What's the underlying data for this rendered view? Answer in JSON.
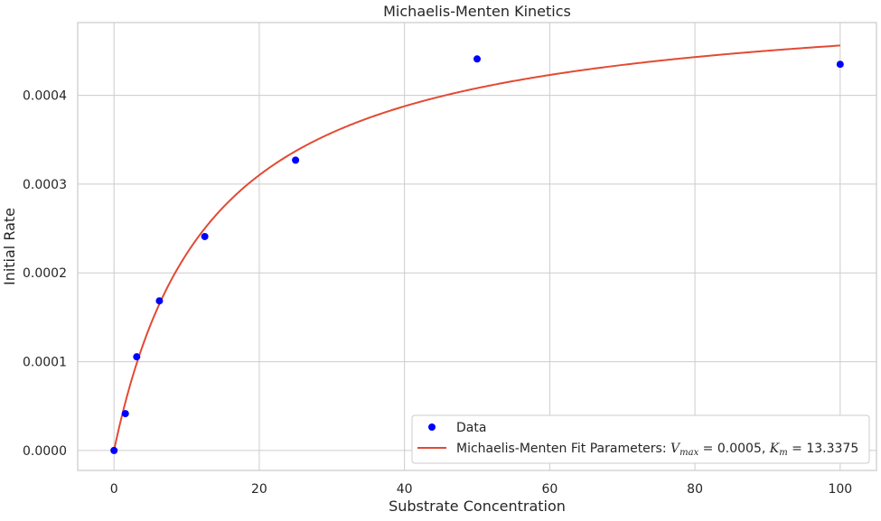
{
  "chart_data": {
    "type": "scatter",
    "title": "Michaelis-Menten Kinetics",
    "xlabel": "Substrate Concentration",
    "ylabel": "Initial Rate",
    "xlim": [
      -5,
      105
    ],
    "ylim": [
      -2.25e-05,
      0.000482
    ],
    "xticks": [
      0,
      20,
      40,
      60,
      80,
      100
    ],
    "yticks": [
      0,
      0.0001,
      0.0002,
      0.0003,
      0.0004
    ],
    "ytick_labels": [
      "0.0000",
      "0.0001",
      "0.0002",
      "0.0003",
      "0.0004"
    ],
    "grid": true,
    "legend_position": "lower-right",
    "series": [
      {
        "name": "Data",
        "kind": "scatter",
        "color": "#0000ff",
        "x": [
          0,
          1.5625,
          3.125,
          6.25,
          12.5,
          25,
          50,
          100
        ],
        "y": [
          0.0,
          4.15e-05,
          0.0001055,
          0.0001685,
          0.000241,
          0.000327,
          0.000441,
          0.000435
        ]
      },
      {
        "name": "Michaelis-Menten Fit Parameters: ",
        "kind": "line",
        "color": "#e24a33",
        "model": "Vmax*x/(Km+x)",
        "vmax": 0.000517,
        "km": 13.3375
      }
    ],
    "fit_label_math": {
      "v": "V",
      "v_sub": "max",
      "v_eq": " = 0.0005, ",
      "k": "K",
      "k_sub": "m",
      "k_eq": " = 13.3375"
    }
  }
}
